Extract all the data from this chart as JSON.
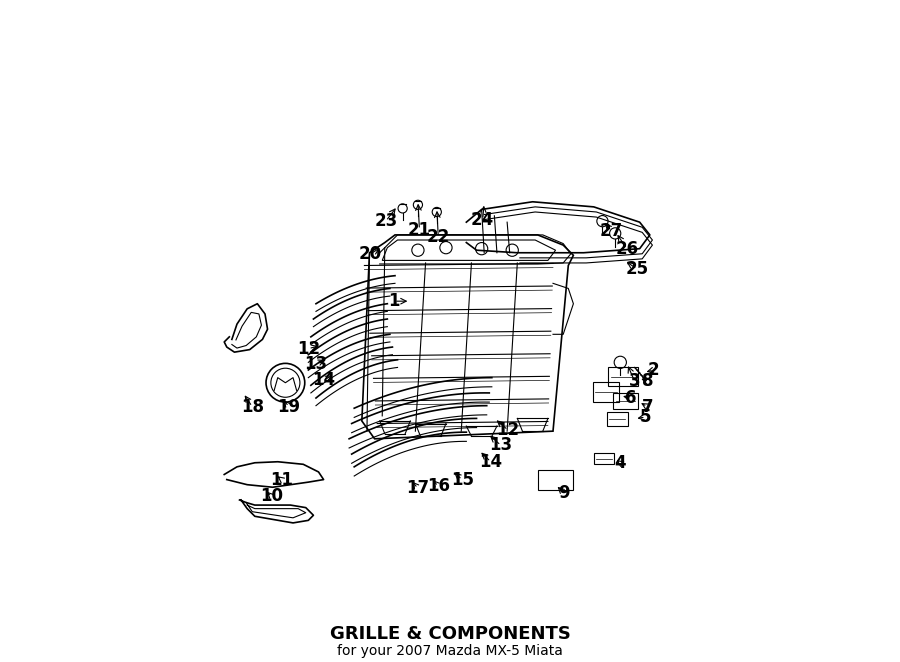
{
  "title": "GRILLE & COMPONENTS",
  "subtitle": "for your 2007 Mazda MX-5 Miata",
  "background_color": "#ffffff",
  "line_color": "#000000",
  "text_color": "#000000",
  "title_fontsize": 13,
  "subtitle_fontsize": 10,
  "label_fontsize": 12,
  "fig_width": 9.0,
  "fig_height": 6.62,
  "dpi": 100
}
